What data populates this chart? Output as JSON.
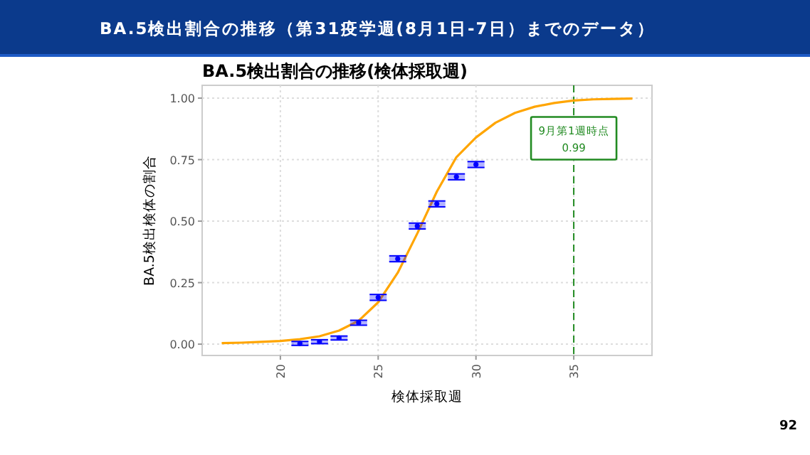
{
  "chart_data": {
    "type": "scatter",
    "title": "BA.5検出割合の推移（第31疫学週(8月1日-7日）までのデータ）",
    "subtitle": "BA.5検出割合の推移(検体採取週)",
    "xlabel": "検体採取週",
    "ylabel": "BA.5検出検体の割合",
    "xlim": [
      16,
      39
    ],
    "ylim": [
      -0.046,
      1.052
    ],
    "xticks": [
      20,
      25,
      30,
      35
    ],
    "yticks": [
      {
        "value": 0,
        "label": "0.00"
      },
      {
        "value": 0.25,
        "label": "0.25"
      },
      {
        "value": 0.5,
        "label": "0.50"
      },
      {
        "value": 0.75,
        "label": "0.75"
      },
      {
        "value": 1,
        "label": "1.00"
      }
    ],
    "grid": true,
    "series": [
      {
        "type": "line",
        "color": "#ffa500",
        "x": [
          17,
          18,
          19,
          20,
          21,
          22,
          23,
          24,
          25,
          26,
          27,
          28,
          29,
          30,
          31,
          32,
          33,
          34,
          35,
          36,
          37,
          38
        ],
        "values": [
          0.004,
          0.006,
          0.009,
          0.013,
          0.02,
          0.032,
          0.055,
          0.095,
          0.17,
          0.29,
          0.45,
          0.62,
          0.76,
          0.84,
          0.9,
          0.94,
          0.965,
          0.98,
          0.99,
          0.995,
          0.997,
          0.998
        ]
      },
      {
        "color": "#0000ff",
        "marker": "circle",
        "x": [
          21,
          22,
          23,
          24,
          25,
          26,
          27,
          28,
          29,
          30
        ],
        "values": [
          0.003,
          0.01,
          0.025,
          0.087,
          0.19,
          0.347,
          0.48,
          0.57,
          0.68,
          0.73
        ],
        "errors": [
          0.008,
          0.008,
          0.008,
          0.01,
          0.012,
          0.012,
          0.012,
          0.012,
          0.012,
          0.012
        ]
      }
    ],
    "ref_lines": [
      {
        "axis": "x",
        "value": 35,
        "color": "#228b22",
        "line_style": "dashed"
      }
    ],
    "annotations": [
      "9月第1週時点",
      "0.99",
      "92"
    ]
  }
}
